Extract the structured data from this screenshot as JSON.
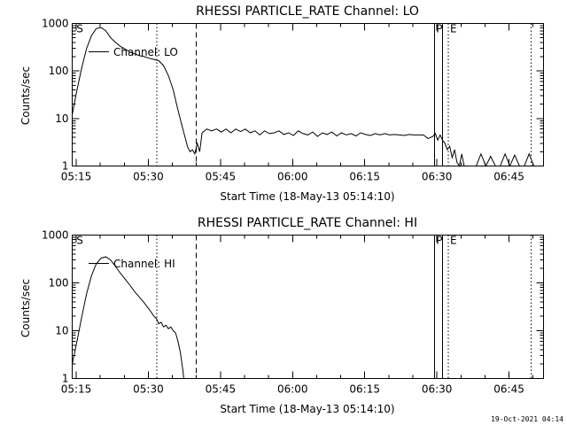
{
  "footer": {
    "date": "19-Oct-2021 04:14"
  },
  "chart_data": [
    {
      "type": "line",
      "title": "RHESSI PARTICLE_RATE Channel: LO",
      "xlabel": "Start Time (18-May-13 05:14:10)",
      "ylabel": "Counts/sec",
      "yscale": "log",
      "xlim_min": [
        0,
        98
      ],
      "ylim": [
        1,
        1000
      ],
      "x_ticks": [
        "05:15",
        "05:30",
        "05:45",
        "06:00",
        "06:15",
        "06:30",
        "06:45"
      ],
      "x_tick_min": [
        0.83,
        15.83,
        30.83,
        45.83,
        60.83,
        75.83,
        90.83
      ],
      "y_ticks": [
        "1",
        "10",
        "100",
        "1000"
      ],
      "y_tick_vals": [
        1,
        10,
        100,
        1000
      ],
      "legend": "Channel: LO",
      "markers": [
        {
          "label": "S",
          "min": 0.5,
          "style": "none"
        },
        {
          "label": "",
          "min": 17.6,
          "style": "dotted"
        },
        {
          "label": "",
          "min": 25.8,
          "style": "dashed"
        },
        {
          "label": "P",
          "min": 75.3,
          "style": "solid"
        },
        {
          "label": "",
          "min": 77.0,
          "style": "solid"
        },
        {
          "label": "E",
          "min": 78.2,
          "style": "dotted"
        },
        {
          "label": "",
          "min": 95.4,
          "style": "dotted"
        }
      ],
      "series": [
        {
          "name": "LO",
          "x": [
            0,
            1,
            2,
            3,
            4,
            5,
            6,
            7,
            8,
            9,
            10,
            11,
            12,
            13,
            14,
            15,
            16,
            17,
            18,
            19,
            20,
            21,
            22,
            23,
            24,
            24.5,
            25,
            25.5,
            26,
            26.5,
            27,
            28,
            29,
            30,
            31,
            32,
            33,
            34,
            35,
            36,
            37,
            38,
            39,
            40,
            41,
            42,
            43,
            44,
            45,
            46,
            47,
            48,
            49,
            50,
            51,
            52,
            53,
            54,
            55,
            56,
            57,
            58,
            59,
            60,
            61,
            62,
            63,
            64,
            65,
            66,
            67,
            68,
            69,
            70,
            71,
            72,
            73,
            74,
            75,
            75.5,
            76,
            76.5,
            77,
            77.5,
            78,
            78.5,
            79,
            79.5,
            80,
            80.5,
            81,
            81.5,
            82,
            82.5,
            83,
            84,
            85,
            86,
            87,
            88,
            89,
            90,
            91,
            92,
            93,
            94,
            95,
            96
          ],
          "y": [
            12,
            40,
            120,
            300,
            550,
            780,
            820,
            700,
            500,
            400,
            330,
            290,
            250,
            230,
            210,
            200,
            185,
            175,
            165,
            130,
            80,
            40,
            15,
            6,
            2.5,
            2,
            2.2,
            1.8,
            3,
            2,
            5,
            6,
            5.5,
            6,
            5.2,
            6,
            5,
            6,
            5.3,
            6,
            5,
            5.5,
            4.5,
            5.5,
            4.8,
            5,
            5.5,
            4.6,
            5,
            4.4,
            5.5,
            4.8,
            4.5,
            5.2,
            4.2,
            5,
            4.6,
            5.2,
            4.3,
            5,
            4.5,
            4.8,
            4.3,
            5,
            4.6,
            4.4,
            4.8,
            4.5,
            4.8,
            4.5,
            4.6,
            4.5,
            4.4,
            4.6,
            4.5,
            4.5,
            4.5,
            3.8,
            4.2,
            4.8,
            3.5,
            4.5,
            3.5,
            3,
            2.2,
            2.6,
            1.5,
            2.2,
            1.2,
            1,
            1.8,
            1,
            1,
            1,
            1,
            1,
            1.8,
            1,
            1.6,
            1,
            1,
            1.8,
            1,
            1.7,
            1,
            1,
            1.8,
            1
          ]
        }
      ]
    },
    {
      "type": "line",
      "title": "RHESSI PARTICLE_RATE Channel: HI",
      "xlabel": "Start Time (18-May-13 05:14:10)",
      "ylabel": "Counts/sec",
      "yscale": "log",
      "xlim_min": [
        0,
        98
      ],
      "ylim": [
        1,
        1000
      ],
      "x_ticks": [
        "05:15",
        "05:30",
        "05:45",
        "06:00",
        "06:15",
        "06:30",
        "06:45"
      ],
      "x_tick_min": [
        0.83,
        15.83,
        30.83,
        45.83,
        60.83,
        75.83,
        90.83
      ],
      "y_ticks": [
        "1",
        "10",
        "100",
        "1000"
      ],
      "y_tick_vals": [
        1,
        10,
        100,
        1000
      ],
      "legend": "Channel: HI",
      "markers": [
        {
          "label": "S",
          "min": 0.5,
          "style": "none"
        },
        {
          "label": "",
          "min": 17.6,
          "style": "dotted"
        },
        {
          "label": "",
          "min": 25.8,
          "style": "dashed"
        },
        {
          "label": "P",
          "min": 75.3,
          "style": "solid"
        },
        {
          "label": "",
          "min": 77.0,
          "style": "solid"
        },
        {
          "label": "E",
          "min": 78.2,
          "style": "dotted"
        },
        {
          "label": "",
          "min": 95.4,
          "style": "dotted"
        }
      ],
      "series": [
        {
          "name": "HI",
          "x": [
            0,
            1,
            2,
            3,
            4,
            5,
            6,
            7,
            8,
            9,
            10,
            11,
            12,
            13,
            14,
            15,
            16,
            17,
            17.5,
            18,
            18.5,
            19,
            19.5,
            20,
            20.5,
            21,
            21.5,
            22,
            22.5,
            23,
            23.2
          ],
          "y": [
            2,
            6,
            20,
            60,
            140,
            250,
            330,
            350,
            300,
            220,
            160,
            120,
            90,
            65,
            50,
            38,
            28,
            20,
            18,
            14,
            15,
            12,
            13,
            11,
            12,
            10,
            9,
            6,
            3.5,
            1.5,
            1
          ]
        }
      ]
    }
  ]
}
